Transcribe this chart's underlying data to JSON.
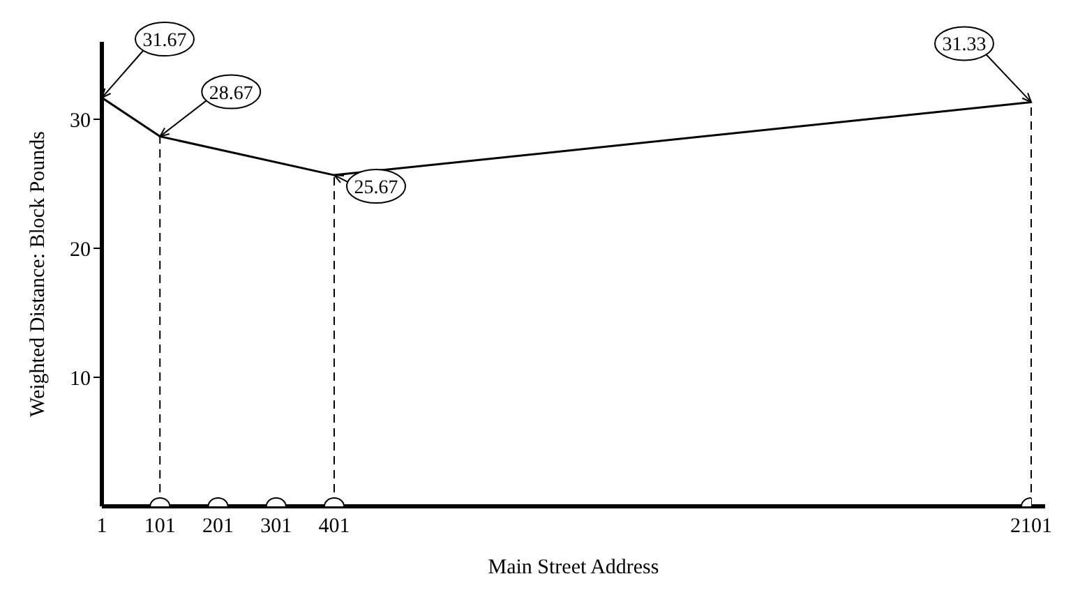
{
  "chart_data": {
    "type": "line",
    "xlabel": "Main Street Address",
    "ylabel": "Weighted Distance: Block Pounds",
    "categories": [
      "1",
      "101",
      "201",
      "301",
      "401",
      null,
      null,
      null,
      null,
      null,
      null,
      null,
      null,
      null,
      null,
      null,
      "2101"
    ],
    "series": [
      {
        "type": "line",
        "color": "#000000",
        "marker": "none",
        "line_style": "solid",
        "values": [
          31.67,
          28.67,
          null,
          null,
          25.67,
          null,
          null,
          null,
          null,
          null,
          null,
          null,
          null,
          null,
          null,
          null,
          31.33
        ],
        "value_labels": [
          "31.67",
          "28.67",
          null,
          null,
          "25.67",
          null,
          null,
          null,
          null,
          null,
          null,
          null,
          null,
          null,
          null,
          null,
          "31.33"
        ]
      },
      {
        "type": "scatter",
        "color": "#000000",
        "marker": "circle",
        "values": [
          null,
          0,
          0,
          0,
          0,
          null,
          null,
          null,
          null,
          null,
          null,
          null,
          null,
          null,
          null,
          null,
          0
        ]
      }
    ],
    "ref_lines": [
      {
        "axis": "x",
        "value": "101",
        "color": "#000000",
        "line_style": "dashed"
      },
      {
        "axis": "x",
        "value": "401",
        "color": "#000000",
        "line_style": "dashed"
      },
      {
        "axis": "x",
        "value": "2101",
        "color": "#000000",
        "line_style": "dashed"
      }
    ],
    "ylim": [
      0,
      36
    ],
    "yticks": [
      10,
      20,
      30
    ],
    "grid": false,
    "legend": false
  }
}
